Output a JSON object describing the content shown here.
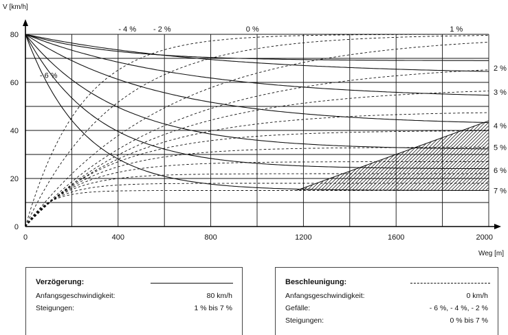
{
  "chart_data": {
    "type": "line",
    "title": "",
    "xlabel": "Weg [m]",
    "ylabel": "V [km/h]",
    "xlim": [
      0,
      2000
    ],
    "ylim": [
      0,
      80
    ],
    "x_ticks": [
      "0",
      "400",
      "800",
      "1200",
      "1600",
      "2000"
    ],
    "y_ticks": [
      "0",
      "20",
      "40",
      "60",
      "80"
    ],
    "grid": true,
    "series_deceleration": [
      {
        "label": "1 %",
        "v_end": 69,
        "k": 0.0026
      },
      {
        "label": "2 %",
        "v_end": 63,
        "k": 0.0012
      },
      {
        "label": "3 %",
        "v_end": 53,
        "k": 0.0014
      },
      {
        "label": "4 %",
        "v_end": 42,
        "k": 0.0017
      },
      {
        "label": "5 %",
        "v_end": 32,
        "k": 0.0025
      },
      {
        "label": "6 %",
        "v_end": 24,
        "k": 0.0032
      },
      {
        "label": "7 %",
        "v_end": 15,
        "k": 0.004
      }
    ],
    "series_acceleration": [
      {
        "v_end": 80,
        "k": 0.0042
      },
      {
        "v_end": 80,
        "k": 0.0026
      },
      {
        "v_end": 80,
        "k": 0.0016
      },
      {
        "v_end": 68,
        "k": 0.0016
      },
      {
        "v_end": 58,
        "k": 0.0018
      },
      {
        "v_end": 48,
        "k": 0.0022
      },
      {
        "v_end": 40,
        "k": 0.0028
      },
      {
        "v_end": 33,
        "k": 0.0035
      },
      {
        "v_end": 27,
        "k": 0.0045
      },
      {
        "v_end": 22,
        "k": 0.006
      },
      {
        "v_end": 18,
        "k": 0.008
      },
      {
        "v_end": 15,
        "k": 0.011
      }
    ],
    "annotations_top": [
      {
        "text": "- 4 %",
        "x": 440
      },
      {
        "text": "- 2 %",
        "x": 590
      },
      {
        "text": "0 %",
        "x": 980
      },
      {
        "text": "1 %",
        "x": 1860
      }
    ],
    "annotation_left": {
      "text": "- 6 %",
      "x": 100,
      "y": 63
    },
    "right_labels": [
      {
        "text": "2 %",
        "y": 66
      },
      {
        "text": "3 %",
        "y": 56
      },
      {
        "text": "4 %",
        "y": 42
      },
      {
        "text": "5 %",
        "y": 33
      },
      {
        "text": "6 %",
        "y": 23.5
      },
      {
        "text": "7 %",
        "y": 15
      }
    ],
    "hatched_region": {
      "x_start": 1170,
      "x_end": 2000,
      "y_low": 15,
      "y_high_at_end": 44
    }
  },
  "legend_left": {
    "title": "Verzögerung:",
    "rows": [
      {
        "key": "Anfangsgeschwindigkeit:",
        "value": "80 km/h"
      },
      {
        "key": "Steigungen:",
        "value": "1 % bis 7 %"
      }
    ]
  },
  "legend_right": {
    "title": "Beschleunigung:",
    "rows": [
      {
        "key": "Anfangsgeschwindigkeit:",
        "value": "0 km/h"
      },
      {
        "key": "Gefälle:",
        "value": "- 6 %, - 4 %, - 2 %"
      },
      {
        "key": "Steigungen:",
        "value": "0 % bis 7 %"
      }
    ]
  }
}
